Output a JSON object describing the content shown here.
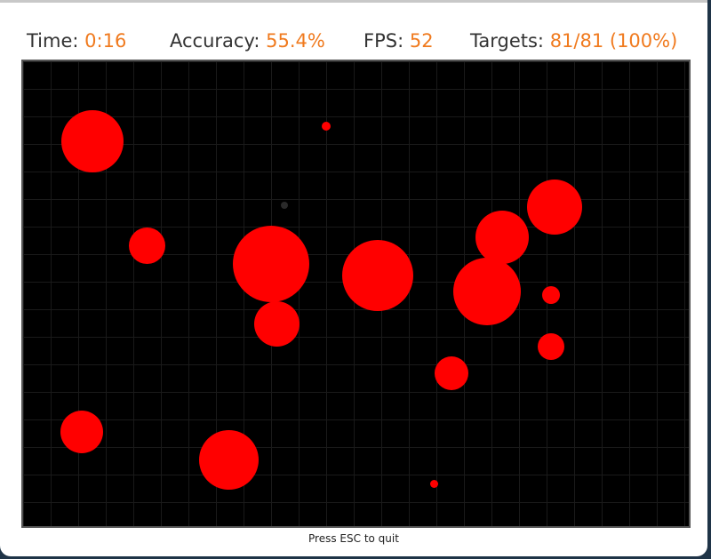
{
  "hud": {
    "time_label": "Time:",
    "time_value": "0:16",
    "accuracy_label": "Accuracy:",
    "accuracy_value": "55.4%",
    "fps_label": "FPS:",
    "fps_value": "52",
    "targets_label": "Targets:",
    "targets_value": "81/81 (100%)"
  },
  "footer": {
    "hint": "Press ESC to quit"
  },
  "colors": {
    "target": "#ff0000",
    "accent": "#f07a1e",
    "arena_bg": "#000000"
  }
}
